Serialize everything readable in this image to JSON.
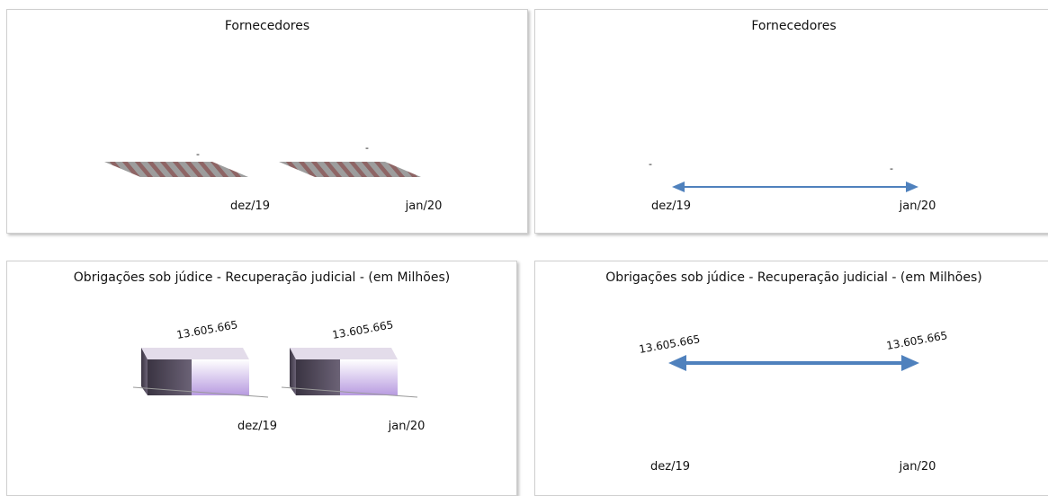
{
  "chart_data": [
    {
      "type": "bar",
      "title": "Fornecedores",
      "categories": [
        "dez/19",
        "jan/20"
      ],
      "values": [
        0,
        0
      ],
      "value_labels": [
        "-",
        "-"
      ]
    },
    {
      "type": "line",
      "title": "Fornecedores",
      "categories": [
        "dez/19",
        "jan/20"
      ],
      "values": [
        0,
        0
      ],
      "value_labels": [
        "-",
        "-"
      ]
    },
    {
      "type": "bar",
      "title": "Obrigações sob júdice - Recuperação judicial - (em Milhões)",
      "categories": [
        "dez/19",
        "jan/20"
      ],
      "values": [
        13605665,
        13605665
      ],
      "value_labels": [
        "13.605.665",
        "13.605.665"
      ]
    },
    {
      "type": "line",
      "title": "Obrigações sob júdice - Recuperação judicial - (em Milhões)",
      "categories": [
        "dez/19",
        "jan/20"
      ],
      "values": [
        13605665,
        13605665
      ],
      "value_labels": [
        "13.605.665",
        "13.605.665"
      ]
    }
  ],
  "colors": {
    "line": "#4f81bd",
    "bar_top": "#e6dcef",
    "bar_front_light": "#c9b3e6",
    "bar_side_dark": "#3a3442",
    "flat_bar_stripe": "#7a4a4a"
  }
}
